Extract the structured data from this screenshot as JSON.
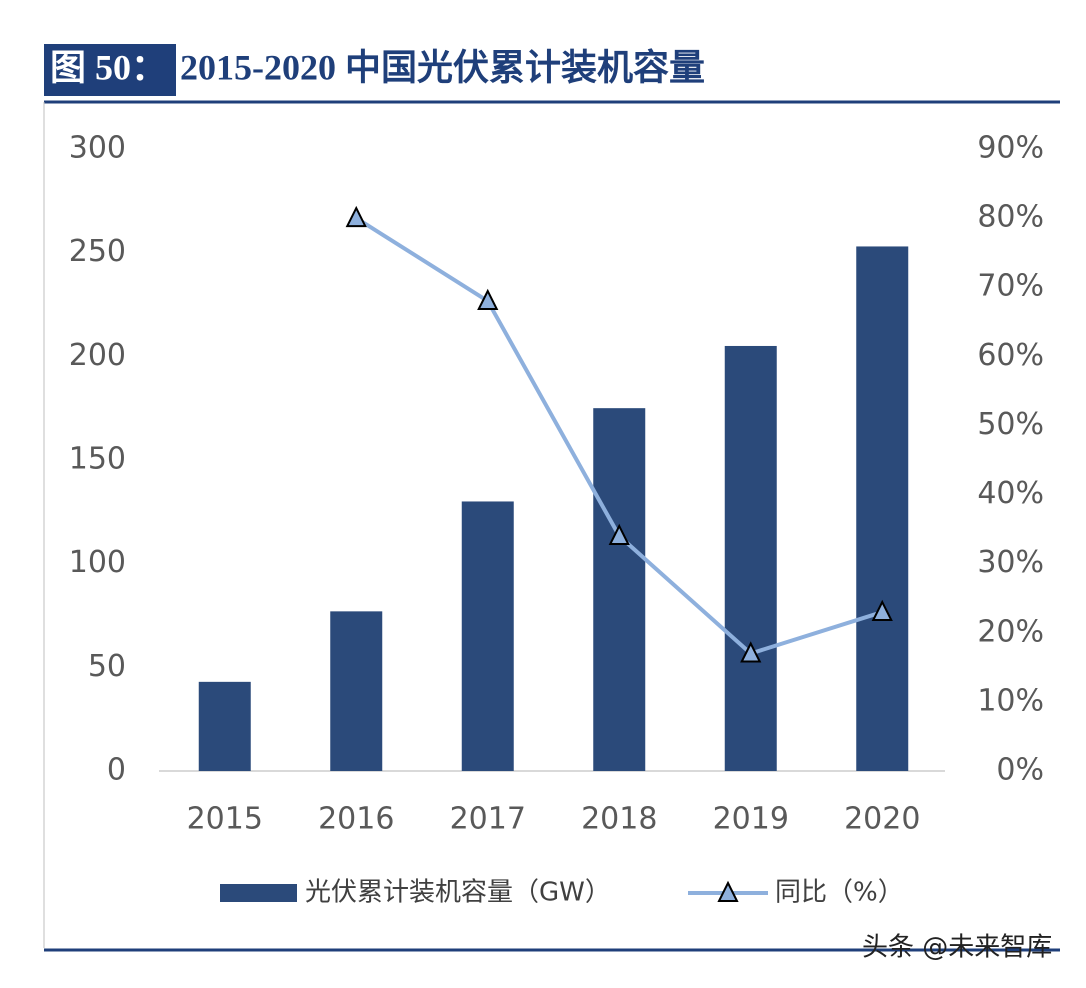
{
  "chart_data": {
    "type": "combo",
    "figure_label": "图 50：",
    "title": "2015-2020 中国光伏累计装机容量",
    "categories": [
      "2015",
      "2016",
      "2017",
      "2018",
      "2019",
      "2020"
    ],
    "series": [
      {
        "name": "光伏累计装机容量（GW）",
        "type": "bar",
        "color": "#2b4a7a",
        "values": [
          43,
          77,
          130,
          175,
          205,
          253
        ]
      },
      {
        "name": "同比（%）",
        "type": "line",
        "axis": "y2",
        "color": "#8eb0dd",
        "marker": "triangle",
        "values": [
          null,
          80,
          68,
          34,
          17,
          23
        ]
      }
    ],
    "ylim": [
      0,
      300
    ],
    "yticks": [
      0,
      50,
      100,
      150,
      200,
      250,
      300
    ],
    "y2lim": [
      0,
      90
    ],
    "y2ticks": [
      {
        "value": 0,
        "label": "0%"
      },
      {
        "value": 10,
        "label": "10%"
      },
      {
        "value": 20,
        "label": "20%"
      },
      {
        "value": 30,
        "label": "30%"
      },
      {
        "value": 40,
        "label": "40%"
      },
      {
        "value": 50,
        "label": "50%"
      },
      {
        "value": 60,
        "label": "60%"
      },
      {
        "value": 70,
        "label": "70%"
      },
      {
        "value": 80,
        "label": "80%"
      },
      {
        "value": 90,
        "label": "90%"
      }
    ],
    "grid": false,
    "legend": "bottom"
  },
  "watermark": "头条 @未来智库"
}
